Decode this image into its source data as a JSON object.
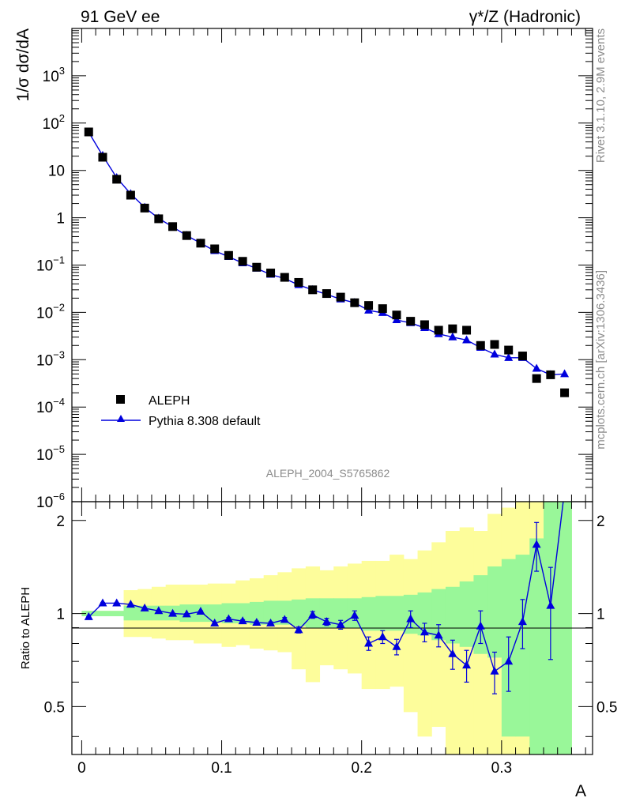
{
  "header": {
    "left": "91 GeV ee",
    "right": "γ*/Z (Hadronic)"
  },
  "side_labels": {
    "top": "Rivet 3.1.10,  2.9M events",
    "bottom": "mcplots.cern.ch [arXiv:1306.3436]"
  },
  "watermark": "ALEPH_2004_S5765862",
  "chart_data": [
    {
      "type": "scatter",
      "panel": "main",
      "ylabel": "1/σ  dσ/dA",
      "yscale": "log",
      "ylim": [
        1e-06,
        10000
      ],
      "xlim": [
        -0.007,
        0.365
      ],
      "ytick_labels": [
        "10^-6",
        "10^-5",
        "10^-4",
        "10^-3",
        "10^-2",
        "10^-1",
        "1",
        "10",
        "10^2",
        "10^3"
      ],
      "ytick_values": [
        1e-06,
        1e-05,
        0.0001,
        0.001,
        0.01,
        0.1,
        1,
        10,
        100,
        1000
      ],
      "legend_position": "lower-left",
      "colors": {
        "data": "#000000",
        "mc": "#0000dd"
      },
      "series": [
        {
          "name": "ALEPH",
          "marker": "square",
          "x": [
            0.005,
            0.015,
            0.025,
            0.035,
            0.045,
            0.055,
            0.065,
            0.075,
            0.085,
            0.095,
            0.105,
            0.115,
            0.125,
            0.135,
            0.145,
            0.155,
            0.165,
            0.175,
            0.185,
            0.195,
            0.205,
            0.215,
            0.225,
            0.235,
            0.245,
            0.255,
            0.265,
            0.275,
            0.285,
            0.295,
            0.305,
            0.315,
            0.325,
            0.335,
            0.345
          ],
          "y": [
            65,
            19,
            6.5,
            3,
            1.6,
            0.95,
            0.65,
            0.42,
            0.29,
            0.22,
            0.16,
            0.12,
            0.09,
            0.068,
            0.055,
            0.043,
            0.03,
            0.025,
            0.021,
            0.016,
            0.014,
            0.012,
            0.0088,
            0.0065,
            0.0055,
            0.0042,
            0.0045,
            0.0042,
            0.002,
            0.0021,
            0.0016,
            0.0012,
            0.0004,
            0.00048,
            0.0002
          ]
        },
        {
          "name": "Pythia 8.308 default",
          "marker": "triangle",
          "x": [
            0.005,
            0.015,
            0.025,
            0.035,
            0.045,
            0.055,
            0.065,
            0.075,
            0.085,
            0.095,
            0.105,
            0.115,
            0.125,
            0.135,
            0.145,
            0.155,
            0.165,
            0.175,
            0.185,
            0.195,
            0.205,
            0.215,
            0.225,
            0.235,
            0.245,
            0.255,
            0.265,
            0.275,
            0.285,
            0.295,
            0.305,
            0.315,
            0.325,
            0.335,
            0.345
          ],
          "y": [
            64,
            20.5,
            7,
            3.2,
            1.65,
            0.97,
            0.64,
            0.42,
            0.29,
            0.2,
            0.15,
            0.11,
            0.085,
            0.063,
            0.052,
            0.038,
            0.03,
            0.024,
            0.019,
            0.016,
            0.011,
            0.0098,
            0.0069,
            0.006,
            0.0047,
            0.0035,
            0.003,
            0.0026,
            0.0018,
            0.0013,
            0.0011,
            0.0011,
            0.00065,
            0.00048,
            0.0005
          ]
        }
      ]
    },
    {
      "type": "line",
      "panel": "ratio",
      "xlabel": "A",
      "ylabel": "Ratio to ALEPH",
      "ylim": [
        0.35,
        2.3
      ],
      "xlim": [
        -0.007,
        0.365
      ],
      "xtick_labels": [
        "0",
        "0.1",
        "0.2",
        "0.3"
      ],
      "xtick_values": [
        0,
        0.1,
        0.2,
        0.3
      ],
      "ytick_labels": [
        "0.5",
        "1",
        "2"
      ],
      "ytick_values": [
        0.5,
        1,
        2
      ],
      "reference_line": 1,
      "band_colors": {
        "stat": "#99f799",
        "total": "#fdfd9b"
      },
      "bands": {
        "x_edges": [
          0.0,
          0.01,
          0.02,
          0.03,
          0.04,
          0.05,
          0.06,
          0.07,
          0.08,
          0.09,
          0.1,
          0.11,
          0.12,
          0.13,
          0.14,
          0.15,
          0.16,
          0.17,
          0.18,
          0.19,
          0.2,
          0.21,
          0.22,
          0.23,
          0.24,
          0.25,
          0.26,
          0.27,
          0.28,
          0.29,
          0.3,
          0.31,
          0.32,
          0.33,
          0.34,
          0.35
        ],
        "stat_lo": [
          0.98,
          0.98,
          0.98,
          0.95,
          0.95,
          0.95,
          0.95,
          0.94,
          0.94,
          0.94,
          0.93,
          0.93,
          0.92,
          0.92,
          0.92,
          0.91,
          0.9,
          0.9,
          0.9,
          0.9,
          0.88,
          0.88,
          0.88,
          0.86,
          0.85,
          0.82,
          0.8,
          0.78,
          0.74,
          0.72,
          0.4,
          0.4,
          0.35,
          0.35,
          0.35
        ],
        "stat_hi": [
          1.02,
          1.02,
          1.02,
          1.06,
          1.06,
          1.06,
          1.06,
          1.07,
          1.07,
          1.07,
          1.08,
          1.08,
          1.09,
          1.1,
          1.1,
          1.11,
          1.12,
          1.12,
          1.12,
          1.12,
          1.13,
          1.14,
          1.14,
          1.15,
          1.17,
          1.2,
          1.22,
          1.27,
          1.33,
          1.42,
          1.5,
          1.55,
          1.75,
          2.3,
          2.3
        ],
        "total_lo": [
          0.98,
          0.98,
          0.98,
          0.84,
          0.84,
          0.83,
          0.82,
          0.82,
          0.8,
          0.8,
          0.78,
          0.79,
          0.77,
          0.76,
          0.75,
          0.66,
          0.6,
          0.68,
          0.66,
          0.64,
          0.57,
          0.57,
          0.58,
          0.48,
          0.4,
          0.43,
          0.35,
          0.35,
          0.35,
          0.35,
          0.35,
          0.35,
          0.35,
          0.35,
          0.35
        ],
        "total_hi": [
          1.02,
          1.02,
          1.02,
          1.19,
          1.2,
          1.22,
          1.24,
          1.24,
          1.24,
          1.25,
          1.25,
          1.28,
          1.3,
          1.33,
          1.36,
          1.4,
          1.42,
          1.38,
          1.42,
          1.45,
          1.48,
          1.48,
          1.55,
          1.5,
          1.6,
          1.7,
          1.85,
          1.9,
          1.85,
          2.1,
          2.2,
          2.3,
          2.3,
          2.3,
          2.3
        ]
      },
      "series": [
        {
          "name": "Pythia 8.308 default",
          "x": [
            0.005,
            0.015,
            0.025,
            0.035,
            0.045,
            0.055,
            0.065,
            0.075,
            0.085,
            0.095,
            0.105,
            0.115,
            0.125,
            0.135,
            0.145,
            0.155,
            0.165,
            0.175,
            0.185,
            0.195,
            0.205,
            0.215,
            0.225,
            0.235,
            0.245,
            0.255,
            0.265,
            0.275,
            0.285,
            0.295,
            0.305,
            0.315,
            0.325,
            0.335,
            0.345
          ],
          "y": [
            0.975,
            1.08,
            1.08,
            1.07,
            1.04,
            1.02,
            1.0,
            0.995,
            1.015,
            0.93,
            0.96,
            0.945,
            0.935,
            0.93,
            0.955,
            0.885,
            0.99,
            0.94,
            0.92,
            0.985,
            0.8,
            0.84,
            0.78,
            0.96,
            0.87,
            0.85,
            0.74,
            0.68,
            0.91,
            0.65,
            0.7,
            0.94,
            1.67,
            1.06,
            2.5
          ],
          "err": [
            0.005,
            0.005,
            0.005,
            0.005,
            0.005,
            0.005,
            0.005,
            0.005,
            0.005,
            0.005,
            0.01,
            0.01,
            0.01,
            0.01,
            0.015,
            0.02,
            0.025,
            0.025,
            0.03,
            0.035,
            0.04,
            0.04,
            0.045,
            0.06,
            0.06,
            0.07,
            0.08,
            0.08,
            0.11,
            0.1,
            0.14,
            0.17,
            0.3,
            0.35,
            0
          ]
        }
      ]
    }
  ]
}
